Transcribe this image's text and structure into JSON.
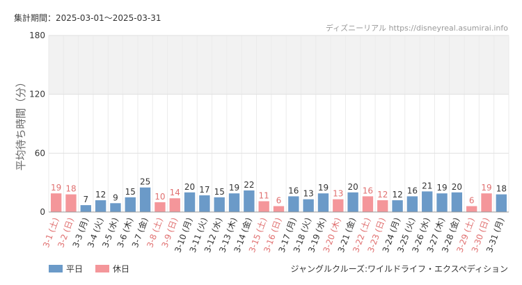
{
  "header": {
    "period": "集計期間：2025-03-01～2025-03-31",
    "source": "ディズニーリアル https://disneyreal.asumirai.info"
  },
  "footer": {
    "attraction": "ジャングルクルーズ:ワイルドライフ・エクスペディション"
  },
  "colors": {
    "weekday": "#6b9ac8",
    "holiday": "#f4969a",
    "holiday_label": "#e07070",
    "band": "#f2f2f2"
  },
  "chart_data": {
    "type": "bar",
    "title": "",
    "xlabel": "",
    "ylabel": "平均待ち時間（分）",
    "ylim": [
      0,
      180
    ],
    "yticks": [
      0,
      60,
      120,
      180
    ],
    "shaded_bands": [
      [
        120,
        180
      ]
    ],
    "grid": true,
    "legend": [
      {
        "name": "平日",
        "key": "weekday"
      },
      {
        "name": "休日",
        "key": "holiday"
      }
    ],
    "categories": [
      "3-1 (土)",
      "3-2 (日)",
      "3-3 (月)",
      "3-4 (火)",
      "3-5 (水)",
      "3-6 (木)",
      "3-7 (金)",
      "3-8 (土)",
      "3-9 (日)",
      "3-10 (月)",
      "3-11 (火)",
      "3-12 (水)",
      "3-13 (木)",
      "3-14 (金)",
      "3-15 (土)",
      "3-16 (日)",
      "3-17 (月)",
      "3-18 (火)",
      "3-19 (水)",
      "3-20 (木)",
      "3-21 (金)",
      "3-22 (土)",
      "3-23 (日)",
      "3-24 (月)",
      "3-25 (火)",
      "3-26 (水)",
      "3-27 (木)",
      "3-28 (金)",
      "3-29 (土)",
      "3-30 (日)",
      "3-31 (月)"
    ],
    "values": [
      19,
      18,
      7,
      12,
      9,
      15,
      25,
      10,
      14,
      20,
      17,
      15,
      19,
      22,
      11,
      6,
      16,
      13,
      19,
      13,
      20,
      16,
      12,
      12,
      16,
      21,
      19,
      20,
      6,
      19,
      18
    ],
    "day_type": [
      "holiday",
      "holiday",
      "weekday",
      "weekday",
      "weekday",
      "weekday",
      "weekday",
      "holiday",
      "holiday",
      "weekday",
      "weekday",
      "weekday",
      "weekday",
      "weekday",
      "holiday",
      "holiday",
      "weekday",
      "weekday",
      "weekday",
      "holiday",
      "weekday",
      "holiday",
      "holiday",
      "weekday",
      "weekday",
      "weekday",
      "weekday",
      "weekday",
      "holiday",
      "holiday",
      "weekday"
    ]
  }
}
